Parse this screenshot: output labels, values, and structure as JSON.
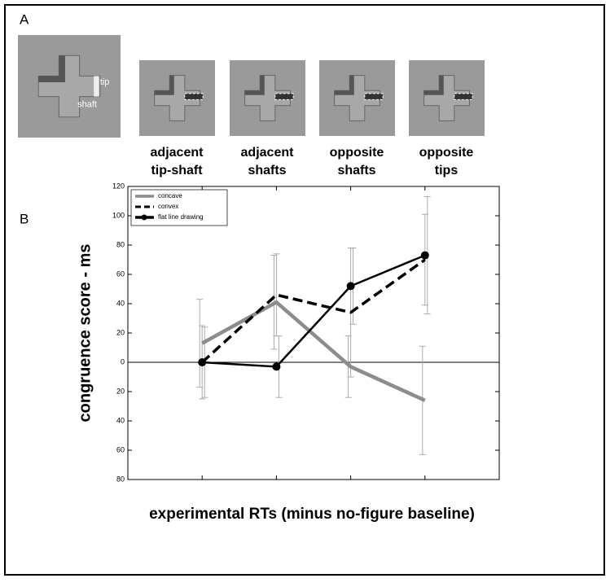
{
  "panel_a": {
    "label": "A",
    "inset_labels": [
      "tip",
      "shaft"
    ],
    "captions": [
      [
        "adjacent",
        "tip-shaft"
      ],
      [
        "adjacent",
        "shafts"
      ],
      [
        "opposite",
        "shafts"
      ],
      [
        "opposite",
        "tips"
      ]
    ]
  },
  "panel_b_label": "B",
  "chart_data": {
    "type": "line",
    "ylabel": "congruence score - ms",
    "xlabel": "experimental RTs (minus no-figure baseline)",
    "categories": [
      null,
      null,
      null,
      null
    ],
    "series": [
      {
        "name": "concave",
        "color": "#8c8c8c",
        "style": "solid",
        "marker": false,
        "values": [
          13,
          41,
          -3,
          -26
        ],
        "errors": [
          30,
          32,
          21,
          37
        ]
      },
      {
        "name": "convex",
        "color": "#000000",
        "style": "dashed",
        "marker": false,
        "values": [
          0,
          46,
          34,
          70
        ],
        "errors": [
          25,
          28,
          44,
          31
        ]
      },
      {
        "name": "flat line drawing",
        "color": "#000000",
        "style": "solid",
        "marker": true,
        "values": [
          0,
          -3,
          52,
          73
        ],
        "errors": [
          24,
          21,
          26,
          40
        ]
      }
    ],
    "ylim": [
      -80,
      120
    ],
    "yticks": [
      120,
      100,
      80,
      60,
      40,
      20,
      0,
      {
        "value": -20,
        "label": "20"
      },
      {
        "value": -40,
        "label": "40"
      },
      {
        "value": -60,
        "label": "60"
      },
      {
        "value": -80,
        "label": "80"
      }
    ],
    "zero_line": true,
    "legend": "upper left"
  }
}
